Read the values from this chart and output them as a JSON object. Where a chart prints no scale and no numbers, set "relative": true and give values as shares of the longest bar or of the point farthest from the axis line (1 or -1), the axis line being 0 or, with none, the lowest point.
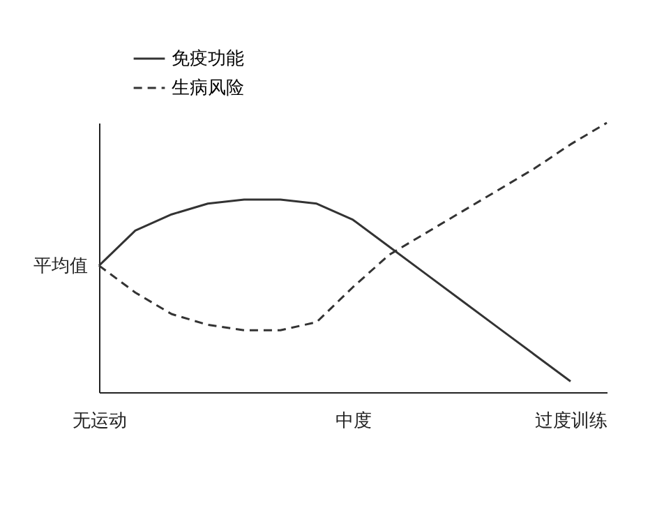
{
  "chart_data": {
    "type": "line",
    "relative": true,
    "legend": "top left",
    "categories": [
      "无运动",
      null,
      null,
      null,
      null,
      null,
      null,
      "中度",
      null,
      null,
      null,
      null,
      null,
      "过度训练",
      null
    ],
    "series": [
      {
        "name": "免疫功能",
        "color": "#333333",
        "line_style": "solid",
        "values": [
          0.47,
          0.6,
          0.66,
          0.7,
          0.715,
          0.715,
          0.7,
          0.64,
          0.54,
          0.44,
          0.34,
          0.24,
          0.14,
          0.04,
          null
        ]
      },
      {
        "name": "生病风险",
        "color": "#333333",
        "line_style": "dashed",
        "values": [
          0.47,
          0.37,
          0.29,
          0.25,
          0.23,
          0.23,
          0.26,
          0.39,
          0.51,
          0.59,
          0.67,
          0.75,
          0.83,
          0.92,
          1
        ]
      }
    ],
    "annotations": [
      {
        "text": "平均值",
        "x": "无运动",
        "y": 0.47
      }
    ]
  }
}
